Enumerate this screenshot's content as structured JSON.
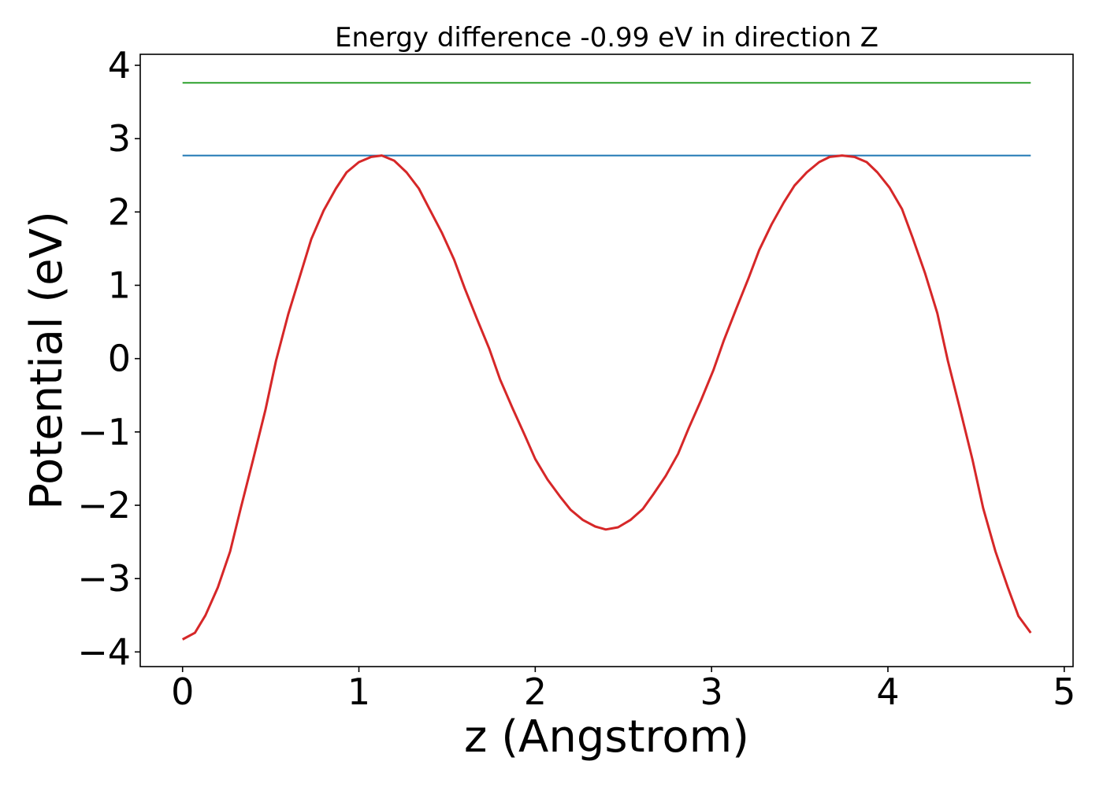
{
  "chart_data": {
    "type": "line",
    "title": "Energy difference -0.99 eV in direction Z",
    "xlabel": "z (Angstrom)",
    "ylabel": "Potential (eV)",
    "xlim": [
      -0.24,
      5.05
    ],
    "ylim": [
      -4.2,
      4.15
    ],
    "xticks": [
      0,
      1,
      2,
      3,
      4,
      5
    ],
    "yticks": [
      -4,
      -3,
      -2,
      -1,
      0,
      1,
      2,
      3,
      4
    ],
    "xtick_labels": [
      "0",
      "1",
      "2",
      "3",
      "4",
      "5"
    ],
    "ytick_labels": [
      "−4",
      "−3",
      "−2",
      "−1",
      "0",
      "1",
      "2",
      "3",
      "4"
    ],
    "grid": false,
    "legend": "none",
    "series": [
      {
        "color": "#2ca02c",
        "style": "flat",
        "x": [
          0.0,
          4.81
        ],
        "y": [
          3.76,
          3.76
        ]
      },
      {
        "color": "#1f77b4",
        "style": "flat",
        "x": [
          0.0,
          4.81
        ],
        "y": [
          2.77,
          2.77
        ]
      },
      {
        "color": "#d62728",
        "style": "curve",
        "x": [
          0.0,
          0.07,
          0.13,
          0.2,
          0.27,
          0.33,
          0.4,
          0.47,
          0.53,
          0.6,
          0.67,
          0.73,
          0.8,
          0.87,
          0.93,
          1.0,
          1.07,
          1.13,
          1.2,
          1.27,
          1.34,
          1.4,
          1.47,
          1.54,
          1.6,
          1.67,
          1.74,
          1.8,
          1.87,
          1.94,
          2.0,
          2.07,
          2.14,
          2.2,
          2.27,
          2.34,
          2.4,
          2.47,
          2.54,
          2.61,
          2.67,
          2.74,
          2.81,
          2.87,
          2.94,
          3.01,
          3.07,
          3.14,
          3.21,
          3.27,
          3.34,
          3.41,
          3.47,
          3.54,
          3.61,
          3.67,
          3.74,
          3.81,
          3.88,
          3.94,
          4.01,
          4.08,
          4.14,
          4.21,
          4.28,
          4.34,
          4.41,
          4.48,
          4.54,
          4.61,
          4.68,
          4.74,
          4.81
        ],
        "y": [
          -3.83,
          -3.74,
          -3.5,
          -3.12,
          -2.63,
          -2.04,
          -1.38,
          -0.7,
          -0.03,
          0.61,
          1.16,
          1.63,
          2.02,
          2.32,
          2.54,
          2.68,
          2.75,
          2.77,
          2.7,
          2.54,
          2.32,
          2.04,
          1.72,
          1.35,
          0.96,
          0.54,
          0.13,
          -0.28,
          -0.67,
          -1.04,
          -1.37,
          -1.65,
          -1.88,
          -2.06,
          -2.2,
          -2.29,
          -2.33,
          -2.3,
          -2.2,
          -2.05,
          -1.85,
          -1.6,
          -1.3,
          -0.95,
          -0.57,
          -0.16,
          0.25,
          0.68,
          1.1,
          1.48,
          1.83,
          2.13,
          2.36,
          2.54,
          2.68,
          2.75,
          2.77,
          2.75,
          2.68,
          2.54,
          2.33,
          2.04,
          1.65,
          1.17,
          0.62,
          -0.03,
          -0.7,
          -1.38,
          -2.04,
          -2.63,
          -3.12,
          -3.51,
          -3.74
        ]
      }
    ]
  }
}
